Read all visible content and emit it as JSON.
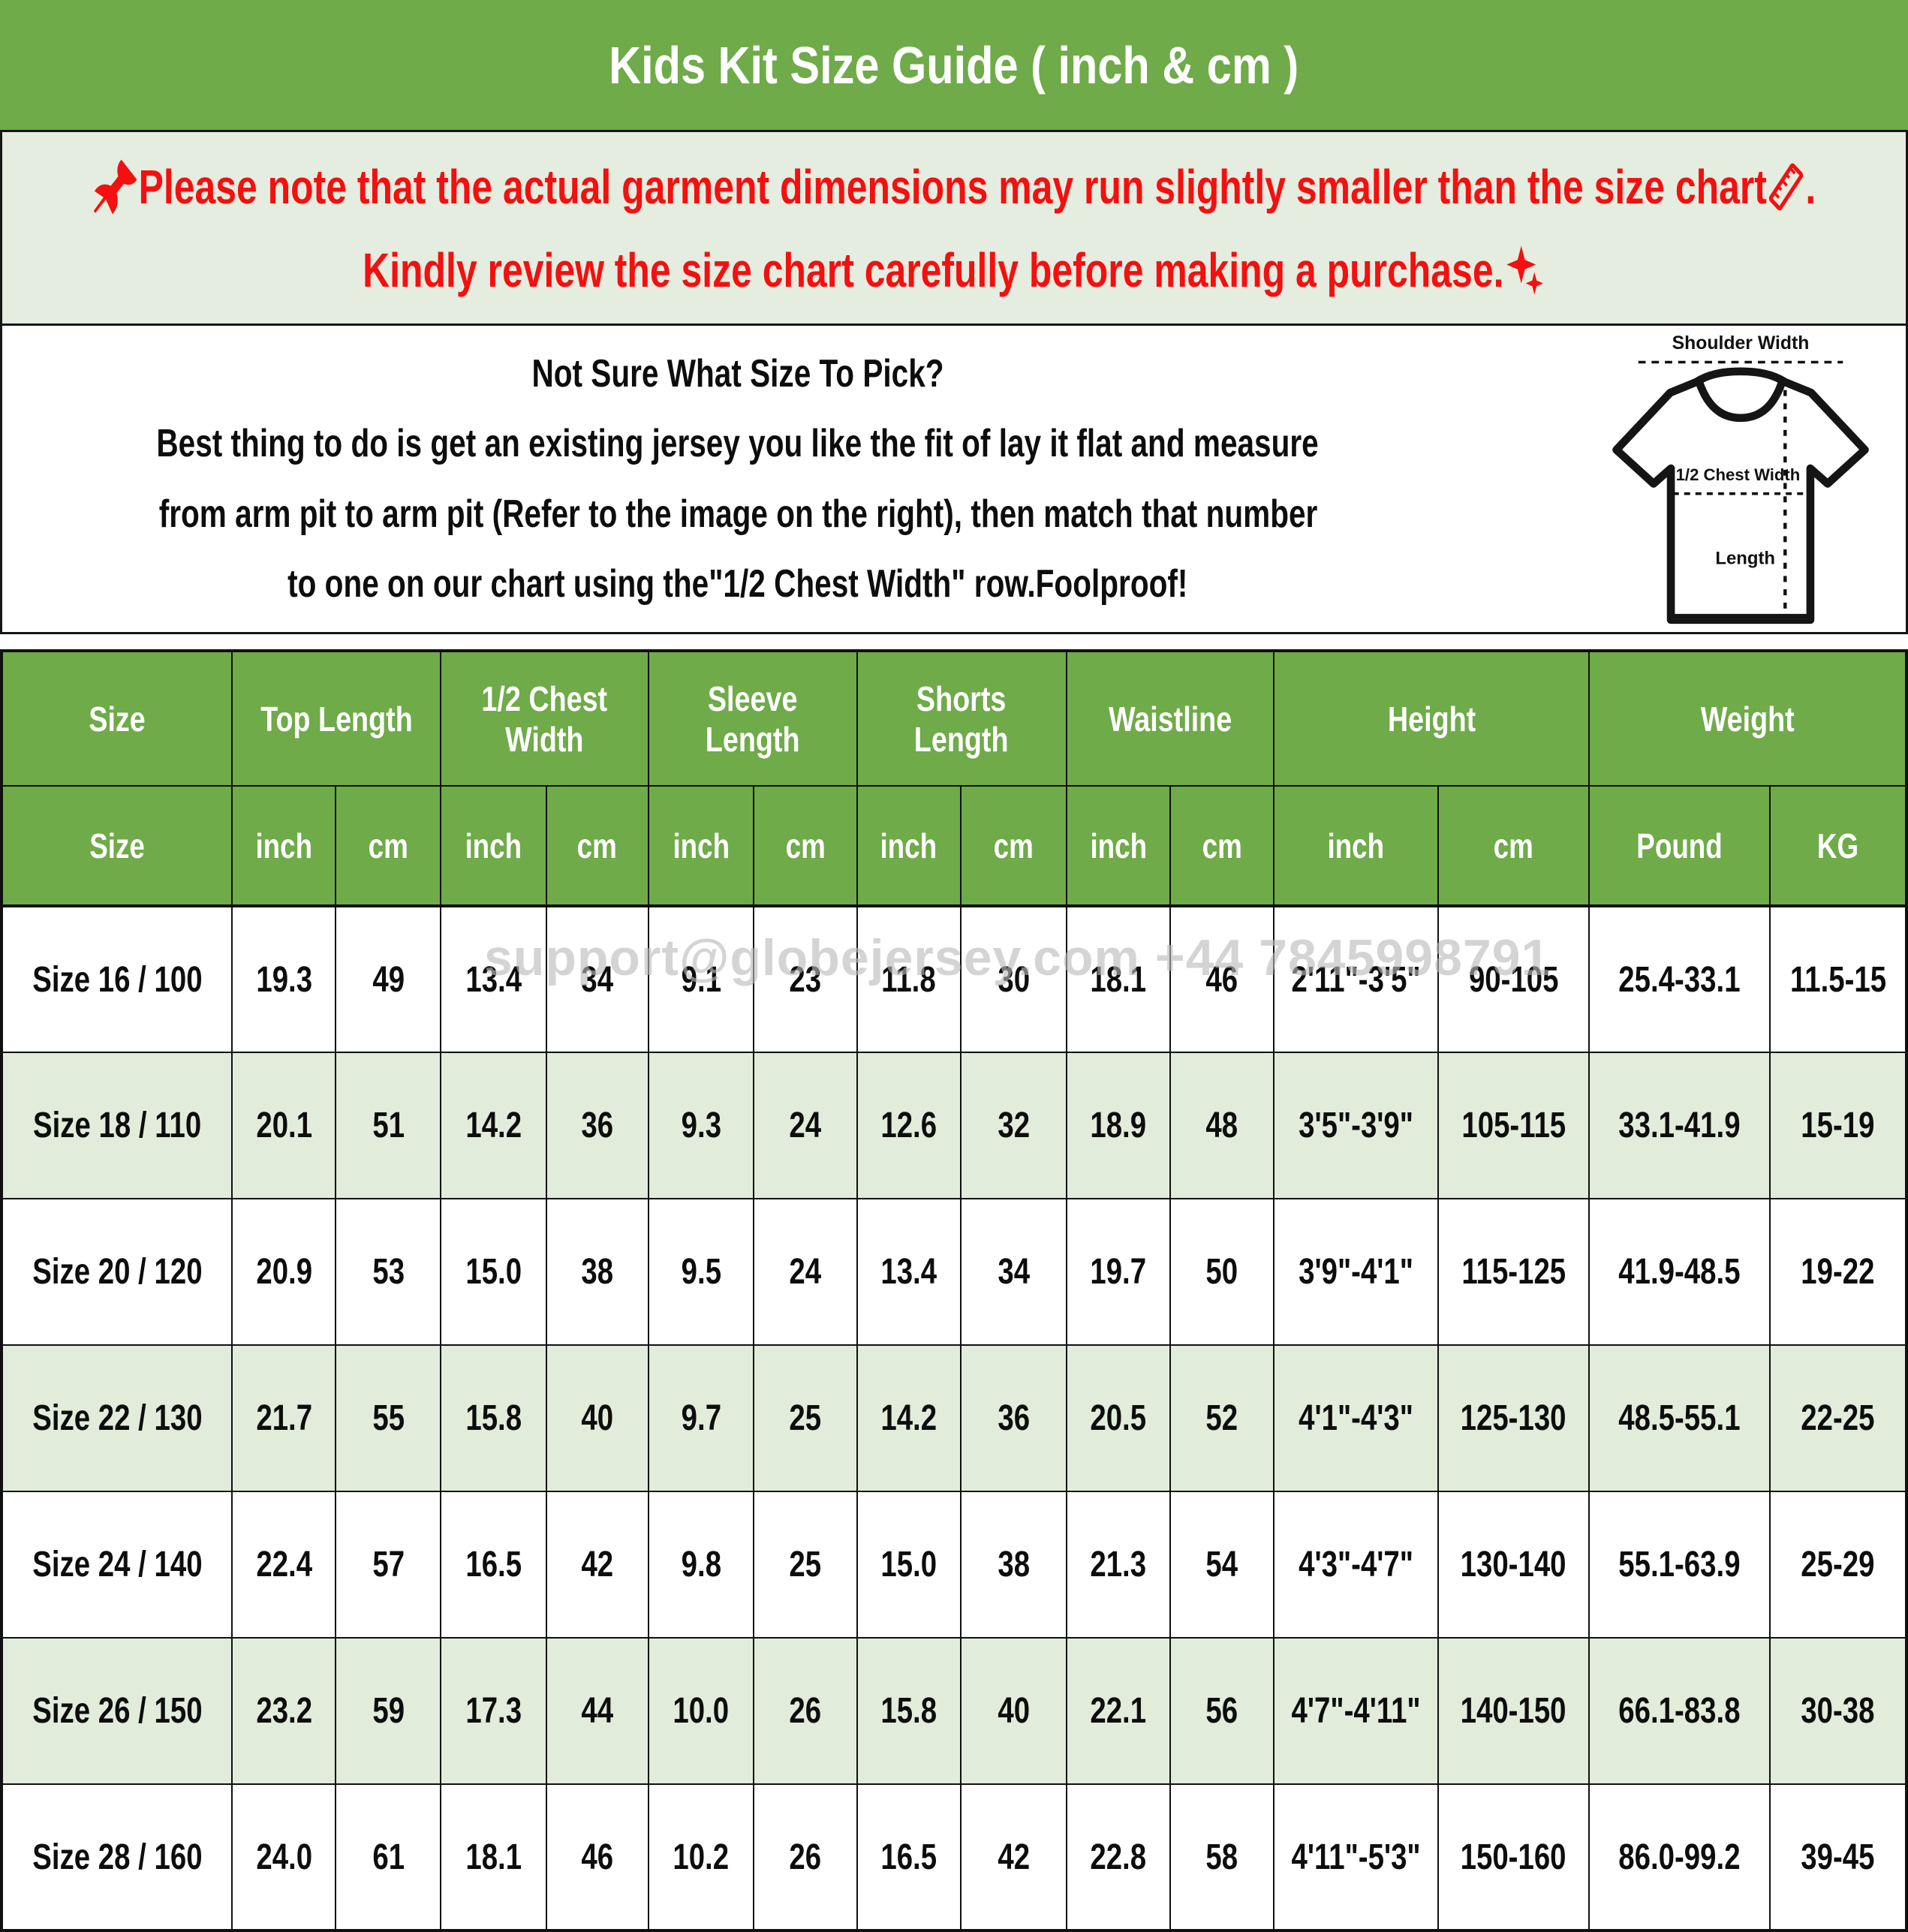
{
  "title": "Kids Kit Size Guide ( inch & cm )",
  "notice": {
    "line1": "Please note that the actual garment dimensions may run slightly smaller than the size chart ",
    "line1_period": " .",
    "line2": "Kindly review the size chart carefully before making a purchase.",
    "text_color": "#f50f0f"
  },
  "howto": {
    "heading": "Not Sure What Size To Pick?",
    "line1": "Best thing to do is get an existing jersey you like the fit of lay it flat and measure",
    "line2": "from arm pit to arm pit (Refer to the image on the right), then match that number",
    "line3": "to one on our chart using the\"1/2 Chest Width\" row.Foolproof!"
  },
  "diagram": {
    "shoulder_label": "Shoulder Width",
    "chest_label": "1/2 Chest Width",
    "length_label": "Length"
  },
  "watermark": "support@globejersey.com +44 7845998791",
  "colors": {
    "header_green": "#6fab49",
    "light_green": "#e4eddf",
    "row_alt_green": "#e1ecda",
    "red": "#f50f0f",
    "watermark_gray": "#bababa"
  },
  "table": {
    "groups": [
      {
        "label": "Size",
        "span": 1
      },
      {
        "label": "Top Length",
        "span": 2
      },
      {
        "label": "1/2 Chest\nWidth",
        "span": 2
      },
      {
        "label": "Sleeve\nLength",
        "span": 2
      },
      {
        "label": "Shorts\nLength",
        "span": 2
      },
      {
        "label": "Waistline",
        "span": 2
      },
      {
        "label": "Height",
        "span": 2
      },
      {
        "label": "Weight",
        "span": 2
      }
    ],
    "units": [
      "Size",
      "inch",
      "cm",
      "inch",
      "cm",
      "inch",
      "cm",
      "inch",
      "cm",
      "inch",
      "cm",
      "inch",
      "cm",
      "Pound",
      "KG"
    ],
    "rows": [
      [
        "Size 16 / 100",
        "19.3",
        "49",
        "13.4",
        "34",
        "9.1",
        "23",
        "11.8",
        "30",
        "18.1",
        "46",
        "2'11\"-3'5\"",
        "90-105",
        "25.4-33.1",
        "11.5-15"
      ],
      [
        "Size 18 / 110",
        "20.1",
        "51",
        "14.2",
        "36",
        "9.3",
        "24",
        "12.6",
        "32",
        "18.9",
        "48",
        "3'5\"-3'9\"",
        "105-115",
        "33.1-41.9",
        "15-19"
      ],
      [
        "Size 20 / 120",
        "20.9",
        "53",
        "15.0",
        "38",
        "9.5",
        "24",
        "13.4",
        "34",
        "19.7",
        "50",
        "3'9\"-4'1\"",
        "115-125",
        "41.9-48.5",
        "19-22"
      ],
      [
        "Size 22 / 130",
        "21.7",
        "55",
        "15.8",
        "40",
        "9.7",
        "25",
        "14.2",
        "36",
        "20.5",
        "52",
        "4'1\"-4'3\"",
        "125-130",
        "48.5-55.1",
        "22-25"
      ],
      [
        "Size 24 / 140",
        "22.4",
        "57",
        "16.5",
        "42",
        "9.8",
        "25",
        "15.0",
        "38",
        "21.3",
        "54",
        "4'3\"-4'7\"",
        "130-140",
        "55.1-63.9",
        "25-29"
      ],
      [
        "Size 26 / 150",
        "23.2",
        "59",
        "17.3",
        "44",
        "10.0",
        "26",
        "15.8",
        "40",
        "22.1",
        "56",
        "4'7\"-4'11\"",
        "140-150",
        "66.1-83.8",
        "30-38"
      ],
      [
        "Size 28 / 160",
        "24.0",
        "61",
        "18.1",
        "46",
        "10.2",
        "26",
        "16.5",
        "42",
        "22.8",
        "58",
        "4'11\"-5'3\"",
        "150-160",
        "86.0-99.2",
        "39-45"
      ]
    ]
  }
}
